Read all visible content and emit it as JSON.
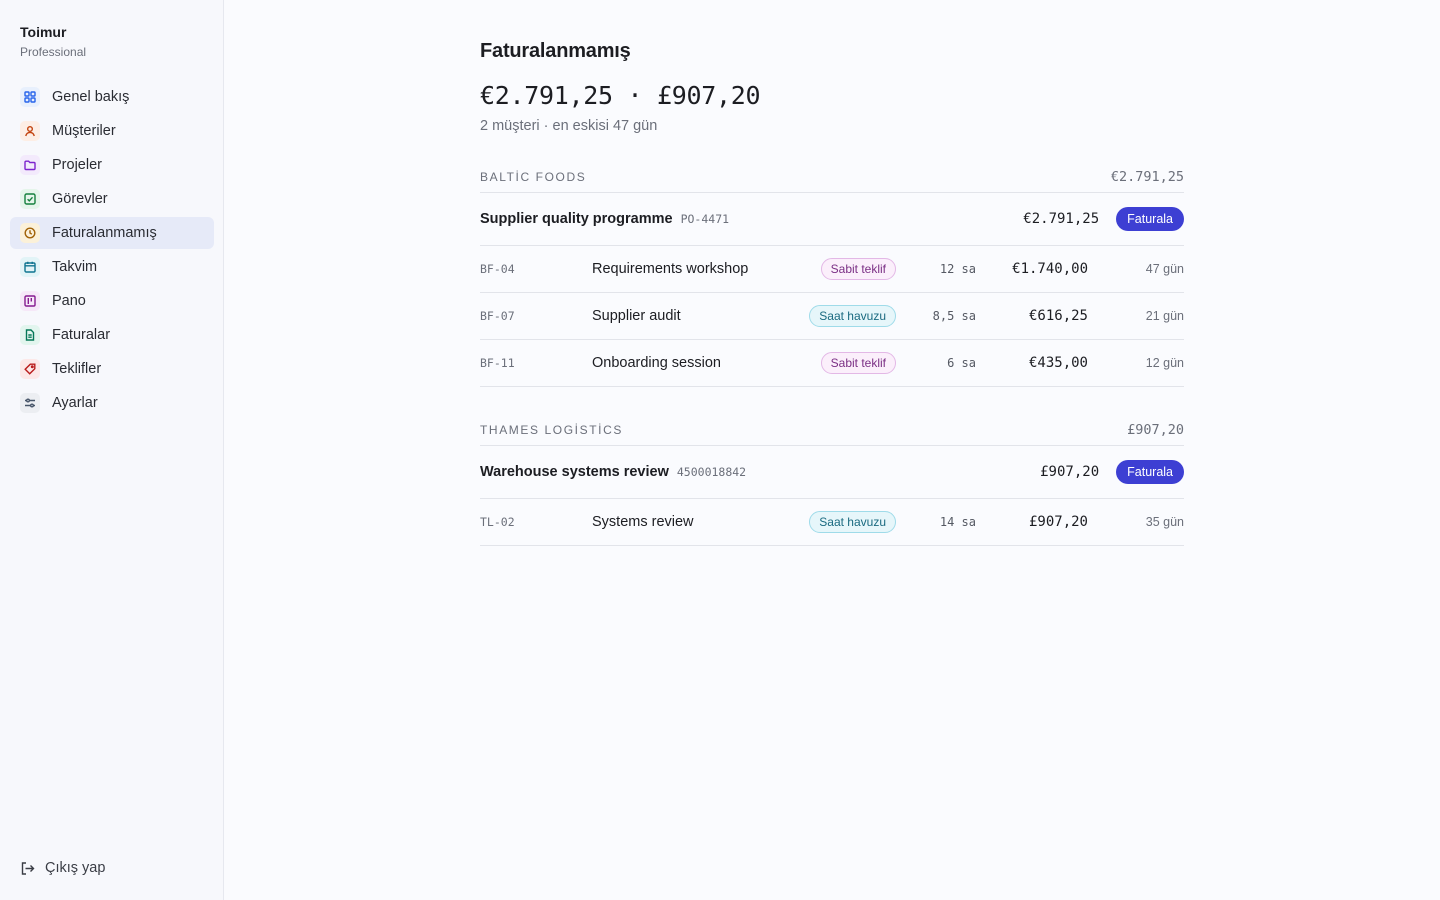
{
  "sidebar": {
    "brand_name": "Toimur",
    "brand_plan": "Professional",
    "items": [
      {
        "label": "Genel bakış",
        "icon": "grid-icon",
        "color": "#2563eb",
        "bg": "#e8f0fd"
      },
      {
        "label": "Müşteriler",
        "icon": "user-icon",
        "color": "#c2410c",
        "bg": "#fdeee5"
      },
      {
        "label": "Projeler",
        "icon": "folder-icon",
        "color": "#7e22ce",
        "bg": "#f3eafc"
      },
      {
        "label": "Görevler",
        "icon": "checkbox-icon",
        "color": "#15803d",
        "bg": "#e5f5ea"
      },
      {
        "label": "Faturalanmamış",
        "icon": "clock-icon",
        "color": "#a16207",
        "bg": "#fbf1d9"
      },
      {
        "label": "Takvim",
        "icon": "calendar-icon",
        "color": "#0e7490",
        "bg": "#e2f4f7"
      },
      {
        "label": "Pano",
        "icon": "kanban-icon",
        "color": "#86198f",
        "bg": "#f6e8f8"
      },
      {
        "label": "Faturalar",
        "icon": "document-icon",
        "color": "#047857",
        "bg": "#e2f5ee"
      },
      {
        "label": "Teklifler",
        "icon": "tag-icon",
        "color": "#b91c1c",
        "bg": "#fce8e8"
      },
      {
        "label": "Ayarlar",
        "icon": "sliders-icon",
        "color": "#475569",
        "bg": "#eceef2"
      }
    ],
    "logout_label": "Çıkış yap"
  },
  "main": {
    "title": "Faturalanmamış",
    "totals": "€2.791,25 · £907,20",
    "subtitle": "2 müşteri · en eskisi 47 gün",
    "accent_color": "#3d3fd3",
    "groups": [
      {
        "client": "BALTİC FOODS",
        "total": "€2.791,25",
        "project": {
          "name": "Supplier quality programme",
          "po": "PO-4471",
          "amount": "€2.791,25",
          "button": "Faturala"
        },
        "tasks": [
          {
            "code": "BF-04",
            "name": "Requirements workshop",
            "badge": "Sabit teklif",
            "badge_type": "fixed",
            "hours": "12 sa",
            "amount": "€1.740,00",
            "age": "47 gün"
          },
          {
            "code": "BF-07",
            "name": "Supplier audit",
            "badge": "Saat havuzu",
            "badge_type": "pool",
            "hours": "8,5 sa",
            "amount": "€616,25",
            "age": "21 gün"
          },
          {
            "code": "BF-11",
            "name": "Onboarding session",
            "badge": "Sabit teklif",
            "badge_type": "fixed",
            "hours": "6 sa",
            "amount": "€435,00",
            "age": "12 gün"
          }
        ]
      },
      {
        "client": "THAMES LOGİSTİCS",
        "total": "£907,20",
        "project": {
          "name": "Warehouse systems review",
          "po": "4500018842",
          "amount": "£907,20",
          "button": "Faturala"
        },
        "tasks": [
          {
            "code": "TL-02",
            "name": "Systems review",
            "badge": "Saat havuzu",
            "badge_type": "pool",
            "hours": "14 sa",
            "amount": "£907,20",
            "age": "35 gün"
          }
        ]
      }
    ]
  }
}
